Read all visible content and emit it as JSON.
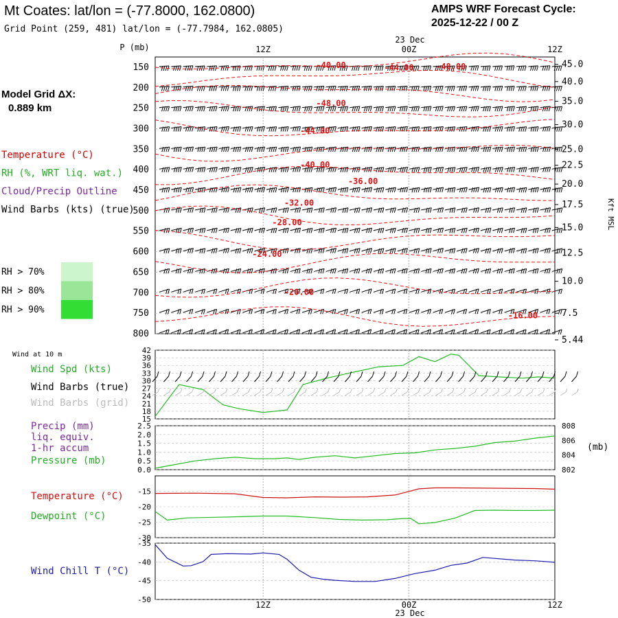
{
  "header": {
    "title": "Mt Coates:  lat/lon = (-77.8000, 162.0800)",
    "subtitle": "Grid Point (259, 481) lat/lon = (-77.7984, 162.0805)",
    "cycle_label": "AMPS WRF Forecast Cycle:",
    "cycle_value": "2025-12-22 / 00  Z"
  },
  "sidebar": {
    "model_grid_label": "Model Grid ΔX:",
    "model_grid_value": "0.889 km",
    "legend": [
      {
        "text": "Temperature (°C)",
        "color": "#cc0000"
      },
      {
        "text": "RH (%, WRT liq. wat.)",
        "color": "#22aa22"
      },
      {
        "text": "Cloud/Precip Outline",
        "color": "#7a2a9a"
      },
      {
        "text": "Wind Barbs (kts) (true)",
        "color": "#000000"
      }
    ],
    "rh_legend": [
      {
        "text": "RH > 70%",
        "color": "#ccf5cc"
      },
      {
        "text": "RH > 80%",
        "color": "#99e699"
      },
      {
        "text": "RH > 90%",
        "color": "#33dd33"
      }
    ]
  },
  "time_axis": {
    "top_date": "23 Dec",
    "bottom_date": "23 Dec",
    "ticks": [
      "12Z",
      "00Z",
      "12Z"
    ]
  },
  "chart_data": [
    {
      "type": "line",
      "name": "upper-air",
      "ylabel": "P (mb)",
      "y2label": "Kft MSL",
      "pressure_levels": [
        150,
        200,
        250,
        300,
        350,
        400,
        450,
        500,
        550,
        600,
        650,
        700,
        750,
        800
      ],
      "height_kft_ticks": [
        "45.0",
        "40.0",
        "35.0",
        "30.0",
        "25.0",
        "22.5",
        "20.0",
        "17.5",
        "15.0",
        "12.5",
        "10.0",
        "7.5",
        "5.44"
      ],
      "height_kft_pressure": [
        143,
        185,
        233,
        290,
        350,
        389,
        435,
        485,
        541,
        603,
        672,
        750,
        815
      ],
      "temperature_contour_labels": [
        {
          "label": "-40.00",
          "t": 0.44,
          "p": 152
        },
        {
          "label": "-44.00",
          "t": 0.61,
          "p": 158
        },
        {
          "label": "-48.00",
          "t": 0.74,
          "p": 155
        },
        {
          "label": "-48.00",
          "t": 0.44,
          "p": 245
        },
        {
          "label": "-44.00",
          "t": 0.4,
          "p": 312
        },
        {
          "label": "-40.00",
          "t": 0.4,
          "p": 395
        },
        {
          "label": "-36.00",
          "t": 0.52,
          "p": 435
        },
        {
          "label": "-32.00",
          "t": 0.36,
          "p": 488
        },
        {
          "label": "-28.00",
          "t": 0.33,
          "p": 535
        },
        {
          "label": "-24.00",
          "t": 0.28,
          "p": 612
        },
        {
          "label": "-20.00",
          "t": 0.36,
          "p": 705
        },
        {
          "label": "-16.00",
          "t": 0.92,
          "p": 762
        }
      ]
    },
    {
      "type": "line",
      "name": "wind-10m",
      "title": "Wind at 10 m",
      "yticks": [
        15,
        18,
        21,
        24,
        27,
        30,
        33,
        36,
        39,
        42
      ],
      "ylim": [
        15,
        42
      ],
      "series": [
        {
          "name": "Wind Spd (kts)",
          "color": "#22bb22",
          "t": [
            0,
            0.06,
            0.12,
            0.17,
            0.21,
            0.27,
            0.33,
            0.37,
            0.43,
            0.5,
            0.56,
            0.62,
            0.66,
            0.7,
            0.74,
            0.76,
            0.81,
            0.86,
            0.92,
            0.96,
            1.0
          ],
          "values": [
            16,
            28.5,
            26.5,
            20.5,
            19,
            17.5,
            18.5,
            28.5,
            31,
            33.5,
            35.5,
            36,
            39.5,
            37.5,
            40.5,
            40,
            32,
            31.5,
            31,
            31.5,
            31
          ]
        }
      ],
      "barb_rows": [
        "Wind Barbs (true)",
        "Wind Barbs (grid)"
      ]
    },
    {
      "type": "line",
      "name": "precip-pressure",
      "yticks_left": [
        "0.0",
        "0.5",
        "1.0",
        "1.5",
        "2.0",
        "2.5"
      ],
      "ylim_left": [
        0,
        2.5
      ],
      "yticks_right": [
        "802",
        "804",
        "806",
        "808"
      ],
      "ylim_right": [
        802,
        808
      ],
      "series": [
        {
          "name": "Pressure (mb)",
          "axis": "right",
          "color": "#22bb22",
          "t": [
            0,
            0.05,
            0.1,
            0.15,
            0.2,
            0.25,
            0.3,
            0.33,
            0.36,
            0.4,
            0.45,
            0.5,
            0.55,
            0.6,
            0.65,
            0.7,
            0.75,
            0.8,
            0.85,
            0.9,
            0.95,
            1.0
          ],
          "values": [
            802.2,
            802.7,
            803.2,
            803.5,
            803.7,
            803.5,
            803.5,
            803.6,
            803.4,
            803.7,
            803.9,
            803.6,
            803.9,
            804.2,
            804.3,
            804.7,
            804.9,
            805.2,
            805.7,
            805.9,
            806.3,
            806.6
          ]
        }
      ],
      "extra_labels": [
        "Precip (mm)",
        "liq. equiv.",
        "1-hr accum",
        "(mb)"
      ]
    },
    {
      "type": "line",
      "name": "temp-dewpoint",
      "yticks": [
        -30,
        -25,
        -20,
        -15
      ],
      "ylim": [
        -30,
        -10
      ],
      "series": [
        {
          "name": "Temperature (°C)",
          "color": "#cc1111",
          "t": [
            0,
            0.1,
            0.2,
            0.27,
            0.33,
            0.4,
            0.47,
            0.53,
            0.6,
            0.63,
            0.66,
            0.7,
            0.75,
            0.85,
            0.95,
            1.0
          ],
          "values": [
            -15.7,
            -15.6,
            -15.8,
            -17,
            -17.1,
            -16.8,
            -16.9,
            -16.8,
            -16.2,
            -15.2,
            -14.2,
            -13.9,
            -13.9,
            -14,
            -14.1,
            -14.3
          ]
        },
        {
          "name": "Dewpoint (°C)",
          "color": "#22bb22",
          "t": [
            0,
            0.03,
            0.08,
            0.15,
            0.22,
            0.27,
            0.33,
            0.4,
            0.46,
            0.52,
            0.58,
            0.62,
            0.64,
            0.66,
            0.7,
            0.75,
            0.8,
            0.85,
            0.9,
            0.95,
            1.0
          ],
          "values": [
            -21.5,
            -24.3,
            -23.6,
            -23.4,
            -23.2,
            -23,
            -23,
            -23.5,
            -24.1,
            -24.3,
            -24.2,
            -23.8,
            -23.8,
            -25.5,
            -25.1,
            -23.7,
            -21.2,
            -21.1,
            -21.2,
            -21.2,
            -21.1
          ]
        }
      ]
    },
    {
      "type": "line",
      "name": "wind-chill",
      "yticks": [
        -50,
        -45,
        -40,
        -35
      ],
      "ylim": [
        -50,
        -35
      ],
      "series": [
        {
          "name": "Wind Chill T (°C)",
          "color": "#1a1aaa",
          "t": [
            0,
            0.03,
            0.07,
            0.09,
            0.12,
            0.14,
            0.18,
            0.24,
            0.27,
            0.31,
            0.33,
            0.36,
            0.39,
            0.42,
            0.45,
            0.5,
            0.55,
            0.6,
            0.65,
            0.7,
            0.74,
            0.78,
            0.82,
            0.9,
            0.95,
            1.0
          ],
          "values": [
            -35.4,
            -39,
            -41.1,
            -41,
            -39.9,
            -38,
            -37.8,
            -37.9,
            -37.6,
            -38,
            -39.3,
            -42.2,
            -44.1,
            -44.6,
            -44.9,
            -45.2,
            -45.2,
            -44.4,
            -43.1,
            -42.2,
            -40.9,
            -40.3,
            -38.8,
            -39.5,
            -39.7,
            -40.1
          ]
        }
      ]
    }
  ]
}
